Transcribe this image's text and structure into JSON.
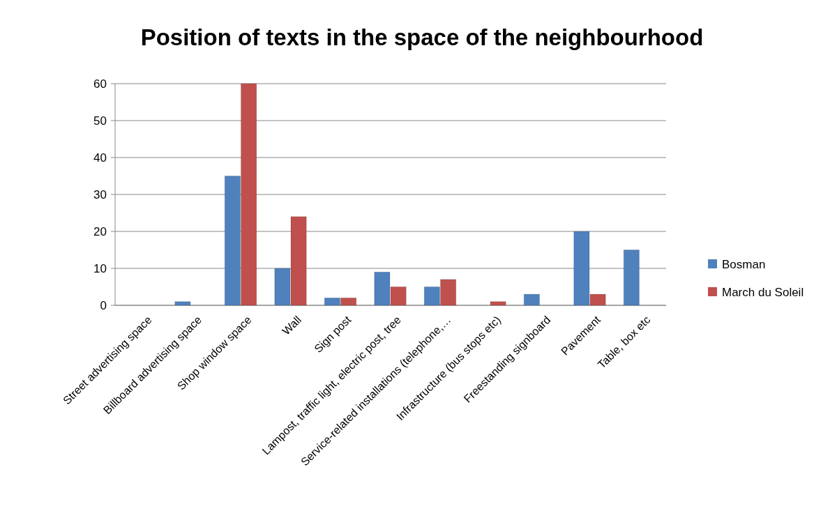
{
  "chart_data": {
    "type": "bar",
    "title": "Position of texts in the space of the neighbourhood",
    "categories": [
      "Street advertising space",
      "Billboard advertising space",
      "Shop window space",
      "Wall",
      "Sign post",
      "Lampost, traffic light, electric post, tree",
      "Service-related installations (telephone,…",
      "Infrastructure (bus stops etc)",
      "Freestanding signboard",
      "Pavement",
      "Table, box etc"
    ],
    "series": [
      {
        "name": "Bosman",
        "color": "#4f81bd",
        "values": [
          0,
          1,
          35,
          10,
          2,
          9,
          5,
          0,
          3,
          20,
          15
        ]
      },
      {
        "name": "March du Soleil",
        "color": "#c0504d",
        "values": [
          0,
          0,
          60,
          24,
          2,
          5,
          7,
          1,
          0,
          3,
          0
        ]
      }
    ],
    "ylim": [
      0,
      60
    ],
    "yticks": [
      0,
      10,
      20,
      30,
      40,
      50,
      60
    ],
    "grid": "y",
    "legend": "right"
  }
}
